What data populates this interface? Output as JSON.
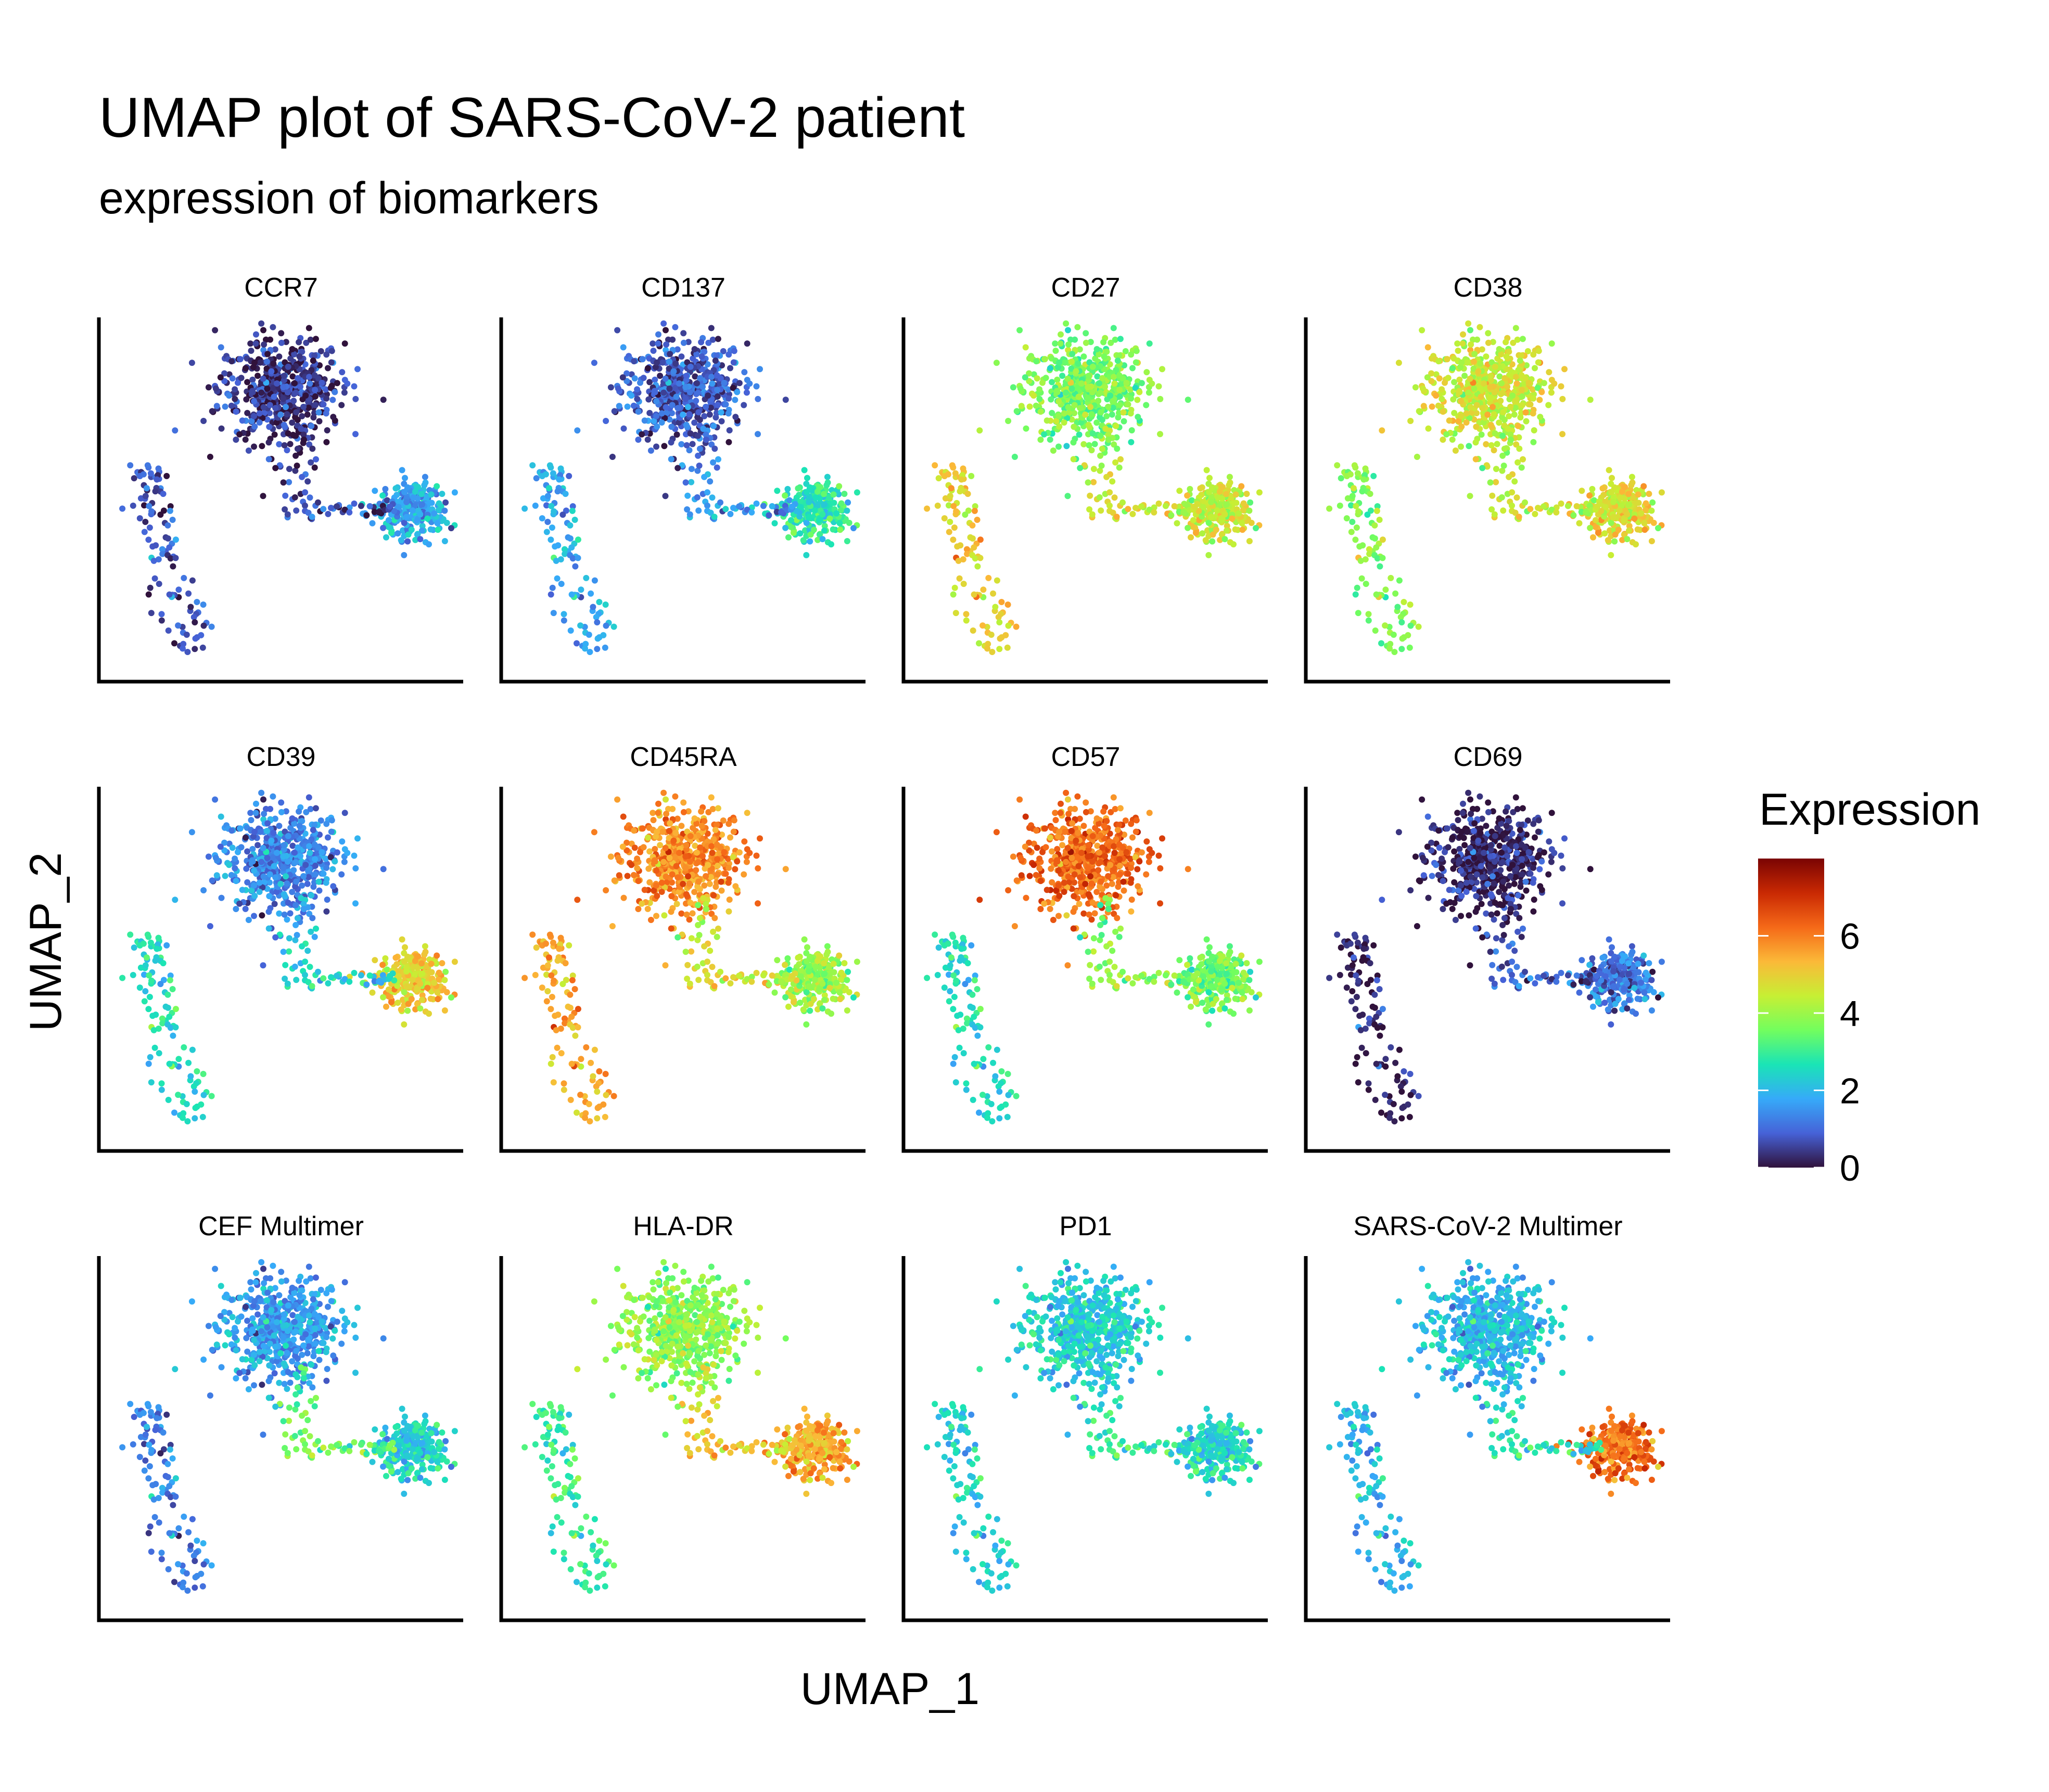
{
  "title": "UMAP plot of SARS-CoV-2 patient",
  "subtitle": "expression of biomarkers",
  "chart_data": {
    "type": "scatter",
    "title": "UMAP plot of SARS-CoV-2 patient",
    "subtitle": "expression of biomarkers",
    "xlabel": "UMAP_1",
    "ylabel": "UMAP_2",
    "ticks_shown": false,
    "grid": false,
    "layout": "facet grid, 3 rows x 4 columns",
    "legend": {
      "title": "Expression",
      "position": "right",
      "type": "continuous colorbar",
      "range": [
        0,
        8
      ],
      "ticks": [
        0,
        2,
        4,
        6
      ],
      "tick_labels": [
        "0",
        "2",
        "4",
        "6"
      ],
      "colormap": "turbo",
      "colors": [
        "#30123b",
        "#4662d7",
        "#36aaf9",
        "#1ae4b6",
        "#72fe5e",
        "#c7ef34",
        "#fbb938",
        "#f56918",
        "#c92903",
        "#7a0403"
      ]
    },
    "clusters": {
      "main": {
        "center": [
          0.5,
          0.82
        ],
        "spread": [
          0.13,
          0.11
        ]
      },
      "right": {
        "center": [
          0.88,
          0.47
        ],
        "spread": [
          0.08,
          0.07
        ]
      },
      "left": {
        "center": [
          0.1,
          0.29
        ],
        "spread": [
          0.06,
          0.14
        ]
      },
      "bridge": {
        "from": [
          0.5,
          0.68
        ],
        "to": [
          0.8,
          0.48
        ]
      }
    },
    "facets": [
      {
        "name": "CCR7",
        "main": 0.4,
        "right": 1.8,
        "left": 0.8,
        "bridge": 0.6
      },
      {
        "name": "CD137",
        "main": 0.8,
        "right": 2.8,
        "left": 1.8,
        "bridge": 1.5
      },
      {
        "name": "CD27",
        "main": 3.6,
        "right": 4.5,
        "left": 5.0,
        "bridge": 4.5
      },
      {
        "name": "CD38",
        "main": 4.5,
        "right": 4.8,
        "left": 3.8,
        "bridge": 4.4
      },
      {
        "name": "CD39",
        "main": 1.3,
        "right": 5.0,
        "left": 2.6,
        "bridge": 2.3
      },
      {
        "name": "CD45RA",
        "main": 5.8,
        "right": 4.0,
        "left": 5.5,
        "bridge": 4.6
      },
      {
        "name": "CD57",
        "main": 6.2,
        "right": 3.6,
        "left": 2.6,
        "bridge": 3.8
      },
      {
        "name": "CD69",
        "main": 0.2,
        "right": 1.2,
        "left": 0.2,
        "bridge": 0.8
      },
      {
        "name": "CEF Multimer",
        "main": 1.6,
        "right": 2.4,
        "left": 1.3,
        "bridge": 3.5
      },
      {
        "name": "HLA-DR",
        "main": 3.8,
        "right": 5.5,
        "left": 3.0,
        "bridge": 5.0
      },
      {
        "name": "PD1",
        "main": 2.3,
        "right": 2.5,
        "left": 2.4,
        "bridge": 2.8
      },
      {
        "name": "SARS-CoV-2 Multimer",
        "main": 2.0,
        "right": 6.2,
        "left": 2.0,
        "bridge": 2.6
      }
    ]
  }
}
